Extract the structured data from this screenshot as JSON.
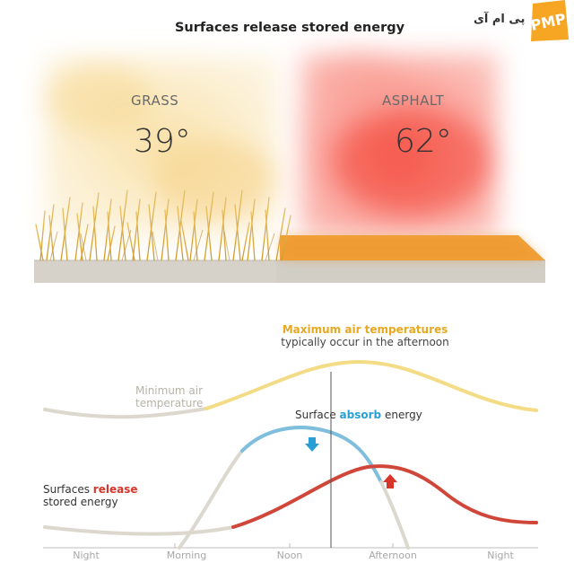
{
  "title": "Surfaces release stored energy",
  "surfaces": {
    "grass": {
      "label": "GRASS",
      "temp": "39°"
    },
    "asphalt": {
      "label": "ASPHALT",
      "temp": "62°"
    }
  },
  "annotations": {
    "max_air_title": "Maximum air temperatures",
    "max_air_sub": "typically occur in the afternoon",
    "min_air": "Minimum air temperature",
    "absorb_pre": "Surface",
    "absorb_hl": "absorb",
    "absorb_post": "energy",
    "release_pre": "Surfaces",
    "release_hl": "release",
    "release_post": "stored energy"
  },
  "axis_labels": [
    "Night",
    "Morning",
    "Noon",
    "Afternoon",
    "Night"
  ],
  "logo": {
    "text": "پی ام آی",
    "badge": "PMP"
  },
  "colors": {
    "air_curve": "#f3dc85",
    "absorb_curve": "#7fbedc",
    "release_curve": "#d0473a",
    "max_air_title": "#e8a820",
    "absorb_highlight": "#2a9fd6",
    "release_highlight": "#d8352a",
    "baseline_gray": "#d8d4cc"
  }
}
